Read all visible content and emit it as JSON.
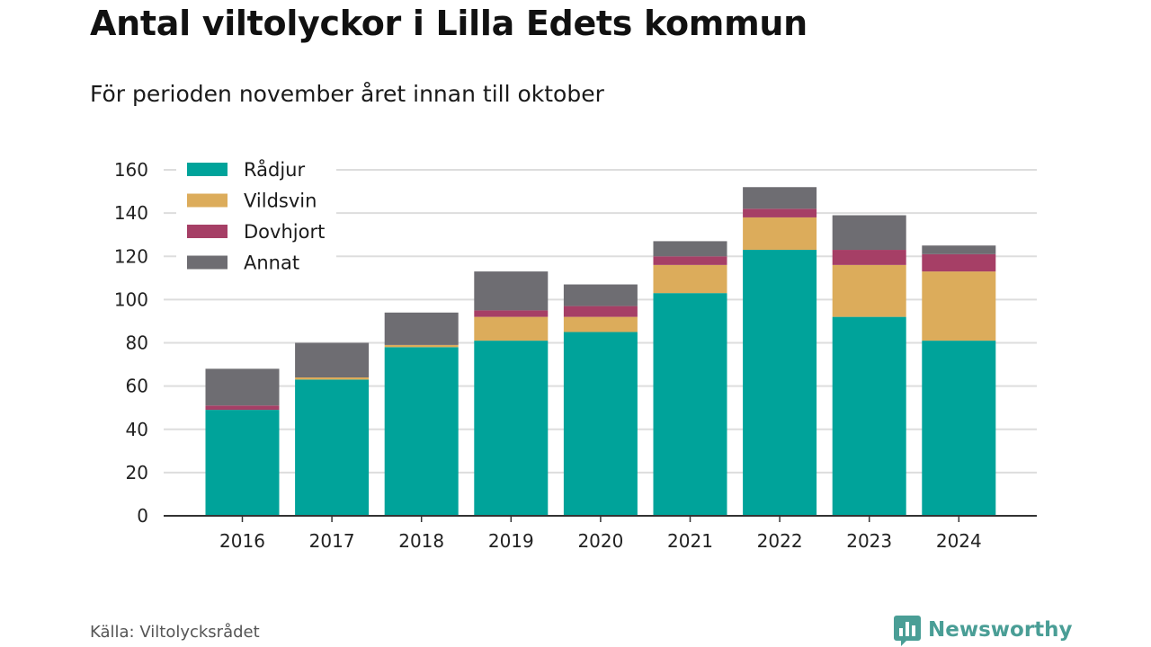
{
  "header": {
    "title": "Antal viltolyckor i Lilla Edets kommun",
    "subtitle": "För perioden november året innan till oktober"
  },
  "footer": {
    "source": "Källa: Viltolycksrådet",
    "brand": "Newsworthy",
    "brand_icon": "bar-chart-logo-icon"
  },
  "colors": {
    "Rådjur": "#00a39a",
    "Vildsvin": "#dcac5b",
    "Dovhjort": "#a63f66",
    "Annat": "#6e6d72",
    "grid": "#dddddd",
    "axis": "#333333",
    "brand": "#4a9e96"
  },
  "chart_data": {
    "type": "bar",
    "stacked": true,
    "title": "Antal viltolyckor i Lilla Edets kommun",
    "subtitle": "För perioden november året innan till oktober",
    "xlabel": "",
    "ylabel": "",
    "ylim": [
      0,
      160
    ],
    "yticks": [
      0,
      20,
      40,
      60,
      80,
      100,
      120,
      140,
      160
    ],
    "grid": true,
    "legend_position": "top-left",
    "categories": [
      "2016",
      "2017",
      "2018",
      "2019",
      "2020",
      "2021",
      "2022",
      "2023",
      "2024"
    ],
    "series": [
      {
        "name": "Rådjur",
        "values": [
          49,
          63,
          78,
          81,
          85,
          103,
          123,
          92,
          81
        ]
      },
      {
        "name": "Vildsvin",
        "values": [
          0,
          1,
          1,
          11,
          7,
          13,
          15,
          24,
          32
        ]
      },
      {
        "name": "Dovhjort",
        "values": [
          2,
          0,
          0,
          3,
          5,
          4,
          4,
          7,
          8
        ]
      },
      {
        "name": "Annat",
        "values": [
          17,
          16,
          15,
          18,
          10,
          7,
          10,
          16,
          4
        ]
      }
    ]
  }
}
